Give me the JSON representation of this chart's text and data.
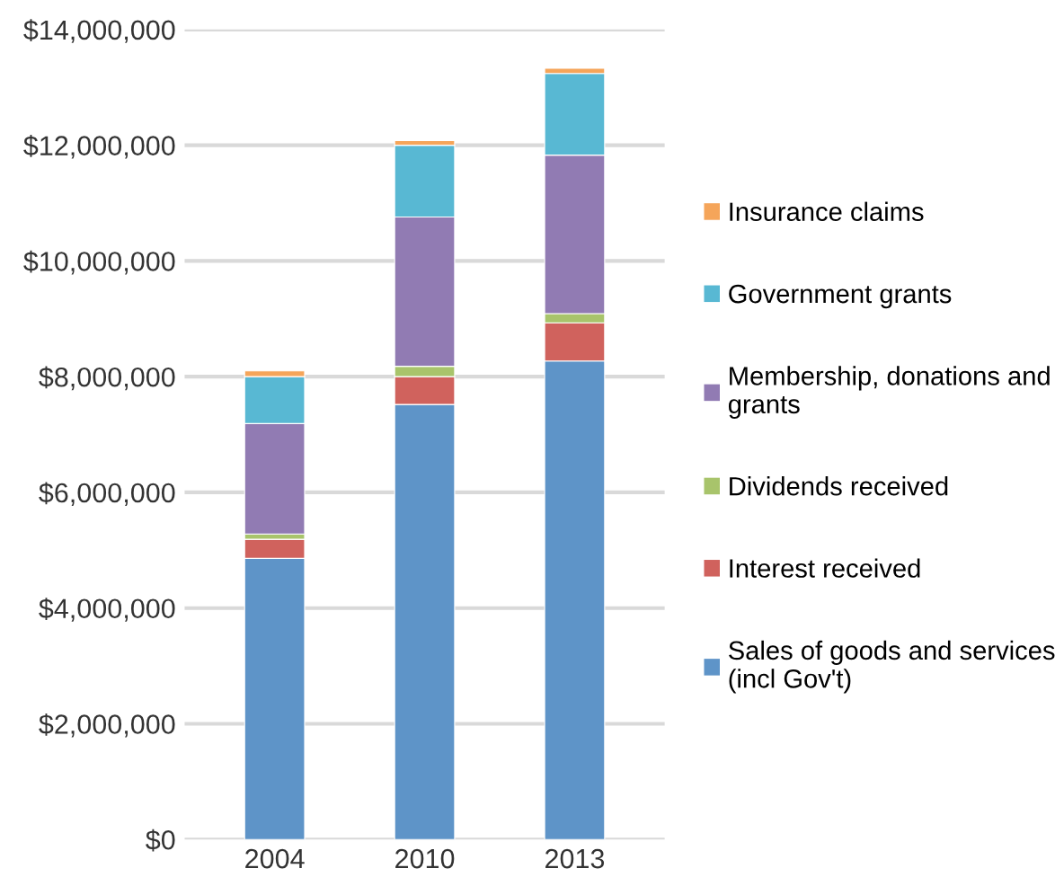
{
  "chart_data": {
    "type": "bar",
    "stacked": true,
    "categories": [
      "2004",
      "2010",
      "2013"
    ],
    "series": [
      {
        "name": "Sales of goods and services (incl Gov't)",
        "color": "#5e94c8",
        "values": [
          4860000,
          7520000,
          8270000
        ]
      },
      {
        "name": "Interest received",
        "color": "#d0625d",
        "values": [
          330000,
          480000,
          660000
        ]
      },
      {
        "name": "Dividends received",
        "color": "#a8c46b",
        "values": [
          90000,
          180000,
          160000
        ]
      },
      {
        "name": "Membership, donations and grants",
        "color": "#917bb3",
        "values": [
          1910000,
          2580000,
          2740000
        ]
      },
      {
        "name": "Government grants",
        "color": "#58b8d3",
        "values": [
          810000,
          1240000,
          1410000
        ]
      },
      {
        "name": "Insurance claims",
        "color": "#f5a55a",
        "values": [
          100000,
          80000,
          90000
        ]
      }
    ],
    "ylim": [
      0,
      14000000
    ],
    "yticks": [
      {
        "value": 0,
        "label": "$0"
      },
      {
        "value": 2000000,
        "label": "$2,000,000"
      },
      {
        "value": 4000000,
        "label": "$4,000,000"
      },
      {
        "value": 6000000,
        "label": "$6,000,000"
      },
      {
        "value": 8000000,
        "label": "$8,000,000"
      },
      {
        "value": 10000000,
        "label": "$10,000,000"
      },
      {
        "value": 12000000,
        "label": "$12,000,000"
      },
      {
        "value": 14000000,
        "label": "$14,000,000"
      }
    ],
    "grid": "y",
    "legend": "right"
  }
}
